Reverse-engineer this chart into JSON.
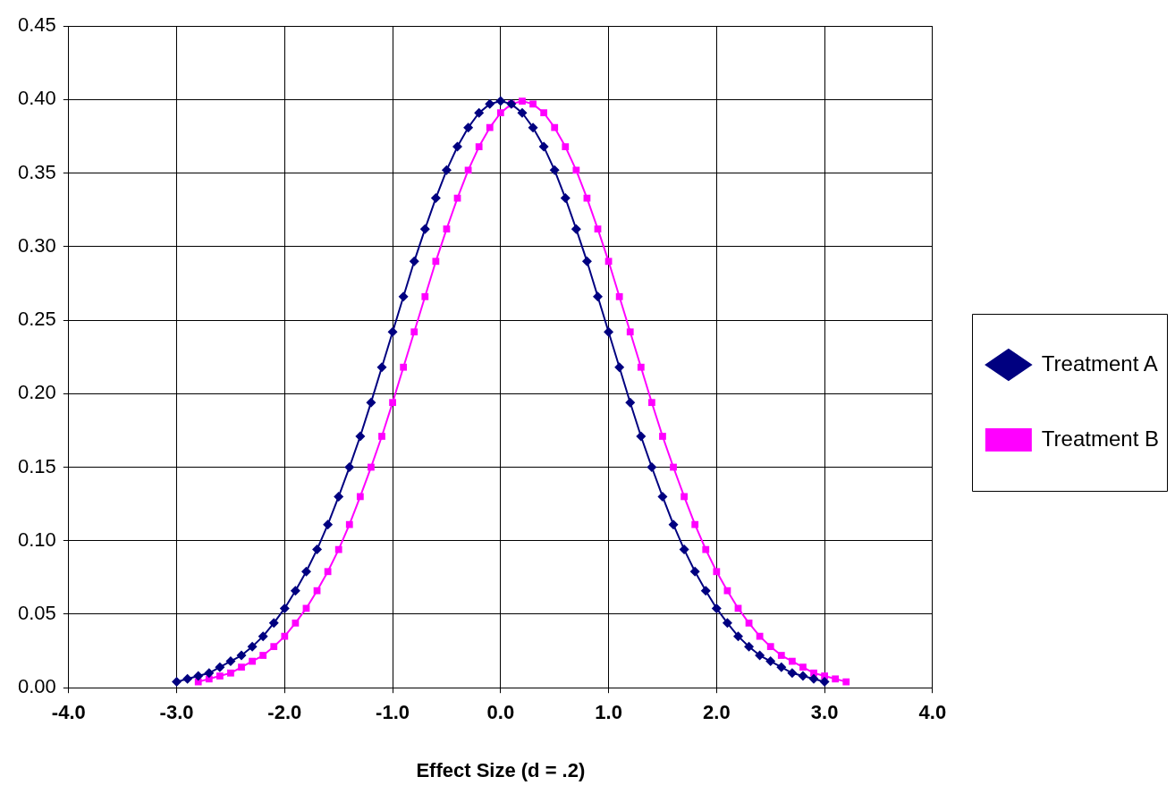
{
  "chart_data": {
    "type": "line",
    "xlabel": "Effect Size (d = .2)",
    "xlim": [
      -4,
      4
    ],
    "xticks": [
      {
        "value": -4,
        "label": "-4.0"
      },
      {
        "value": -3,
        "label": "-3.0"
      },
      {
        "value": -2,
        "label": "-2.0"
      },
      {
        "value": -1,
        "label": "-1.0"
      },
      {
        "value": 0,
        "label": "0.0"
      },
      {
        "value": 1,
        "label": "1.0"
      },
      {
        "value": 2,
        "label": "2.0"
      },
      {
        "value": 3,
        "label": "3.0"
      },
      {
        "value": 4,
        "label": "4.0"
      }
    ],
    "ylim": [
      0,
      0.45
    ],
    "yticks": [
      {
        "value": 0,
        "label": "0.00"
      },
      {
        "value": 0.05,
        "label": "0.05"
      },
      {
        "value": 0.1,
        "label": "0.10"
      },
      {
        "value": 0.15,
        "label": "0.15"
      },
      {
        "value": 0.2,
        "label": "0.20"
      },
      {
        "value": 0.25,
        "label": "0.25"
      },
      {
        "value": 0.3,
        "label": "0.30"
      },
      {
        "value": 0.35,
        "label": "0.35"
      },
      {
        "value": 0.4,
        "label": "0.40"
      },
      {
        "value": 0.45,
        "label": "0.45"
      }
    ],
    "grid": true,
    "legend": "right",
    "line_style": "solid",
    "series": [
      {
        "name": "Treatment A",
        "color": "#000080",
        "marker": "diamond",
        "x": [
          -3.0,
          -2.9,
          -2.8,
          -2.7,
          -2.6,
          -2.5,
          -2.4,
          -2.3,
          -2.2,
          -2.1,
          -2.0,
          -1.9,
          -1.8,
          -1.7,
          -1.6,
          -1.5,
          -1.4,
          -1.3,
          -1.2,
          -1.1,
          -1.0,
          -0.9,
          -0.8,
          -0.7,
          -0.6,
          -0.5,
          -0.4,
          -0.3,
          -0.2,
          -0.1,
          0.0,
          0.1,
          0.2,
          0.3,
          0.4,
          0.5,
          0.6,
          0.7,
          0.8,
          0.9,
          1.0,
          1.1,
          1.2,
          1.3,
          1.4,
          1.5,
          1.6,
          1.7,
          1.8,
          1.9,
          2.0,
          2.1,
          2.2,
          2.3,
          2.4,
          2.5,
          2.6,
          2.7,
          2.8,
          2.9,
          3.0
        ],
        "values": [
          0.004,
          0.006,
          0.008,
          0.01,
          0.014,
          0.018,
          0.022,
          0.028,
          0.035,
          0.044,
          0.054,
          0.066,
          0.079,
          0.094,
          0.111,
          0.13,
          0.15,
          0.171,
          0.194,
          0.218,
          0.242,
          0.266,
          0.29,
          0.312,
          0.333,
          0.352,
          0.368,
          0.381,
          0.391,
          0.397,
          0.399,
          0.397,
          0.391,
          0.381,
          0.368,
          0.352,
          0.333,
          0.312,
          0.29,
          0.266,
          0.242,
          0.218,
          0.194,
          0.171,
          0.15,
          0.13,
          0.111,
          0.094,
          0.079,
          0.066,
          0.054,
          0.044,
          0.035,
          0.028,
          0.022,
          0.018,
          0.014,
          0.01,
          0.008,
          0.006,
          0.004
        ]
      },
      {
        "name": "Treatment B",
        "color": "#ff00ff",
        "marker": "square",
        "x": [
          -2.8,
          -2.7,
          -2.6,
          -2.5,
          -2.4,
          -2.3,
          -2.2,
          -2.1,
          -2.0,
          -1.9,
          -1.8,
          -1.7,
          -1.6,
          -1.5,
          -1.4,
          -1.3,
          -1.2,
          -1.1,
          -1.0,
          -0.9,
          -0.8,
          -0.7,
          -0.6,
          -0.5,
          -0.4,
          -0.3,
          -0.2,
          -0.1,
          0.0,
          0.1,
          0.2,
          0.3,
          0.4,
          0.5,
          0.6,
          0.7,
          0.8,
          0.9,
          1.0,
          1.1,
          1.2,
          1.3,
          1.4,
          1.5,
          1.6,
          1.7,
          1.8,
          1.9,
          2.0,
          2.1,
          2.2,
          2.3,
          2.4,
          2.5,
          2.6,
          2.7,
          2.8,
          2.9,
          3.0,
          3.1,
          3.2
        ],
        "values": [
          0.004,
          0.006,
          0.008,
          0.01,
          0.014,
          0.018,
          0.022,
          0.028,
          0.035,
          0.044,
          0.054,
          0.066,
          0.079,
          0.094,
          0.111,
          0.13,
          0.15,
          0.171,
          0.194,
          0.218,
          0.242,
          0.266,
          0.29,
          0.312,
          0.333,
          0.352,
          0.368,
          0.381,
          0.391,
          0.397,
          0.399,
          0.397,
          0.391,
          0.381,
          0.368,
          0.352,
          0.333,
          0.312,
          0.29,
          0.266,
          0.242,
          0.218,
          0.194,
          0.171,
          0.15,
          0.13,
          0.111,
          0.094,
          0.079,
          0.066,
          0.054,
          0.044,
          0.035,
          0.028,
          0.022,
          0.018,
          0.014,
          0.01,
          0.008,
          0.006,
          0.004
        ]
      }
    ]
  }
}
